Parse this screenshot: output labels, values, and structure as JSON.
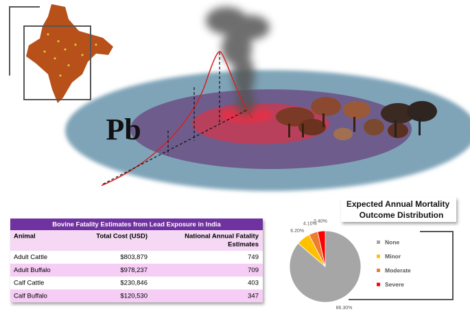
{
  "illustration": {
    "label": "Pb"
  },
  "table": {
    "title": "Bovine Fatality Estimates from Lead Exposure in India",
    "columns": [
      "Animal",
      "Total Cost (USD)",
      [
        "National Annual Fatality",
        "Estimates"
      ]
    ],
    "rows": [
      [
        "Adult Cattle",
        "$803,879",
        "749"
      ],
      [
        "Adult Buffalo",
        "$978,237",
        "709"
      ],
      [
        "Calf Cattle",
        "$230,846",
        "403"
      ],
      [
        "Calf Buffalo",
        "$120,530",
        "347"
      ]
    ]
  },
  "chart_data": {
    "type": "pie",
    "title": [
      "Expected Annual Mortality",
      "Outcome Distribution"
    ],
    "categories": [
      "None",
      "Minor",
      "Moderate",
      "Severe"
    ],
    "values": [
      86.3,
      6.2,
      4.1,
      3.4
    ],
    "value_labels": [
      "86.30%",
      "6.20%",
      "4.10%",
      "3.40%"
    ],
    "colors": [
      "#a6a6a6",
      "#ffc000",
      "#ed7d31",
      "#ff0000"
    ]
  }
}
